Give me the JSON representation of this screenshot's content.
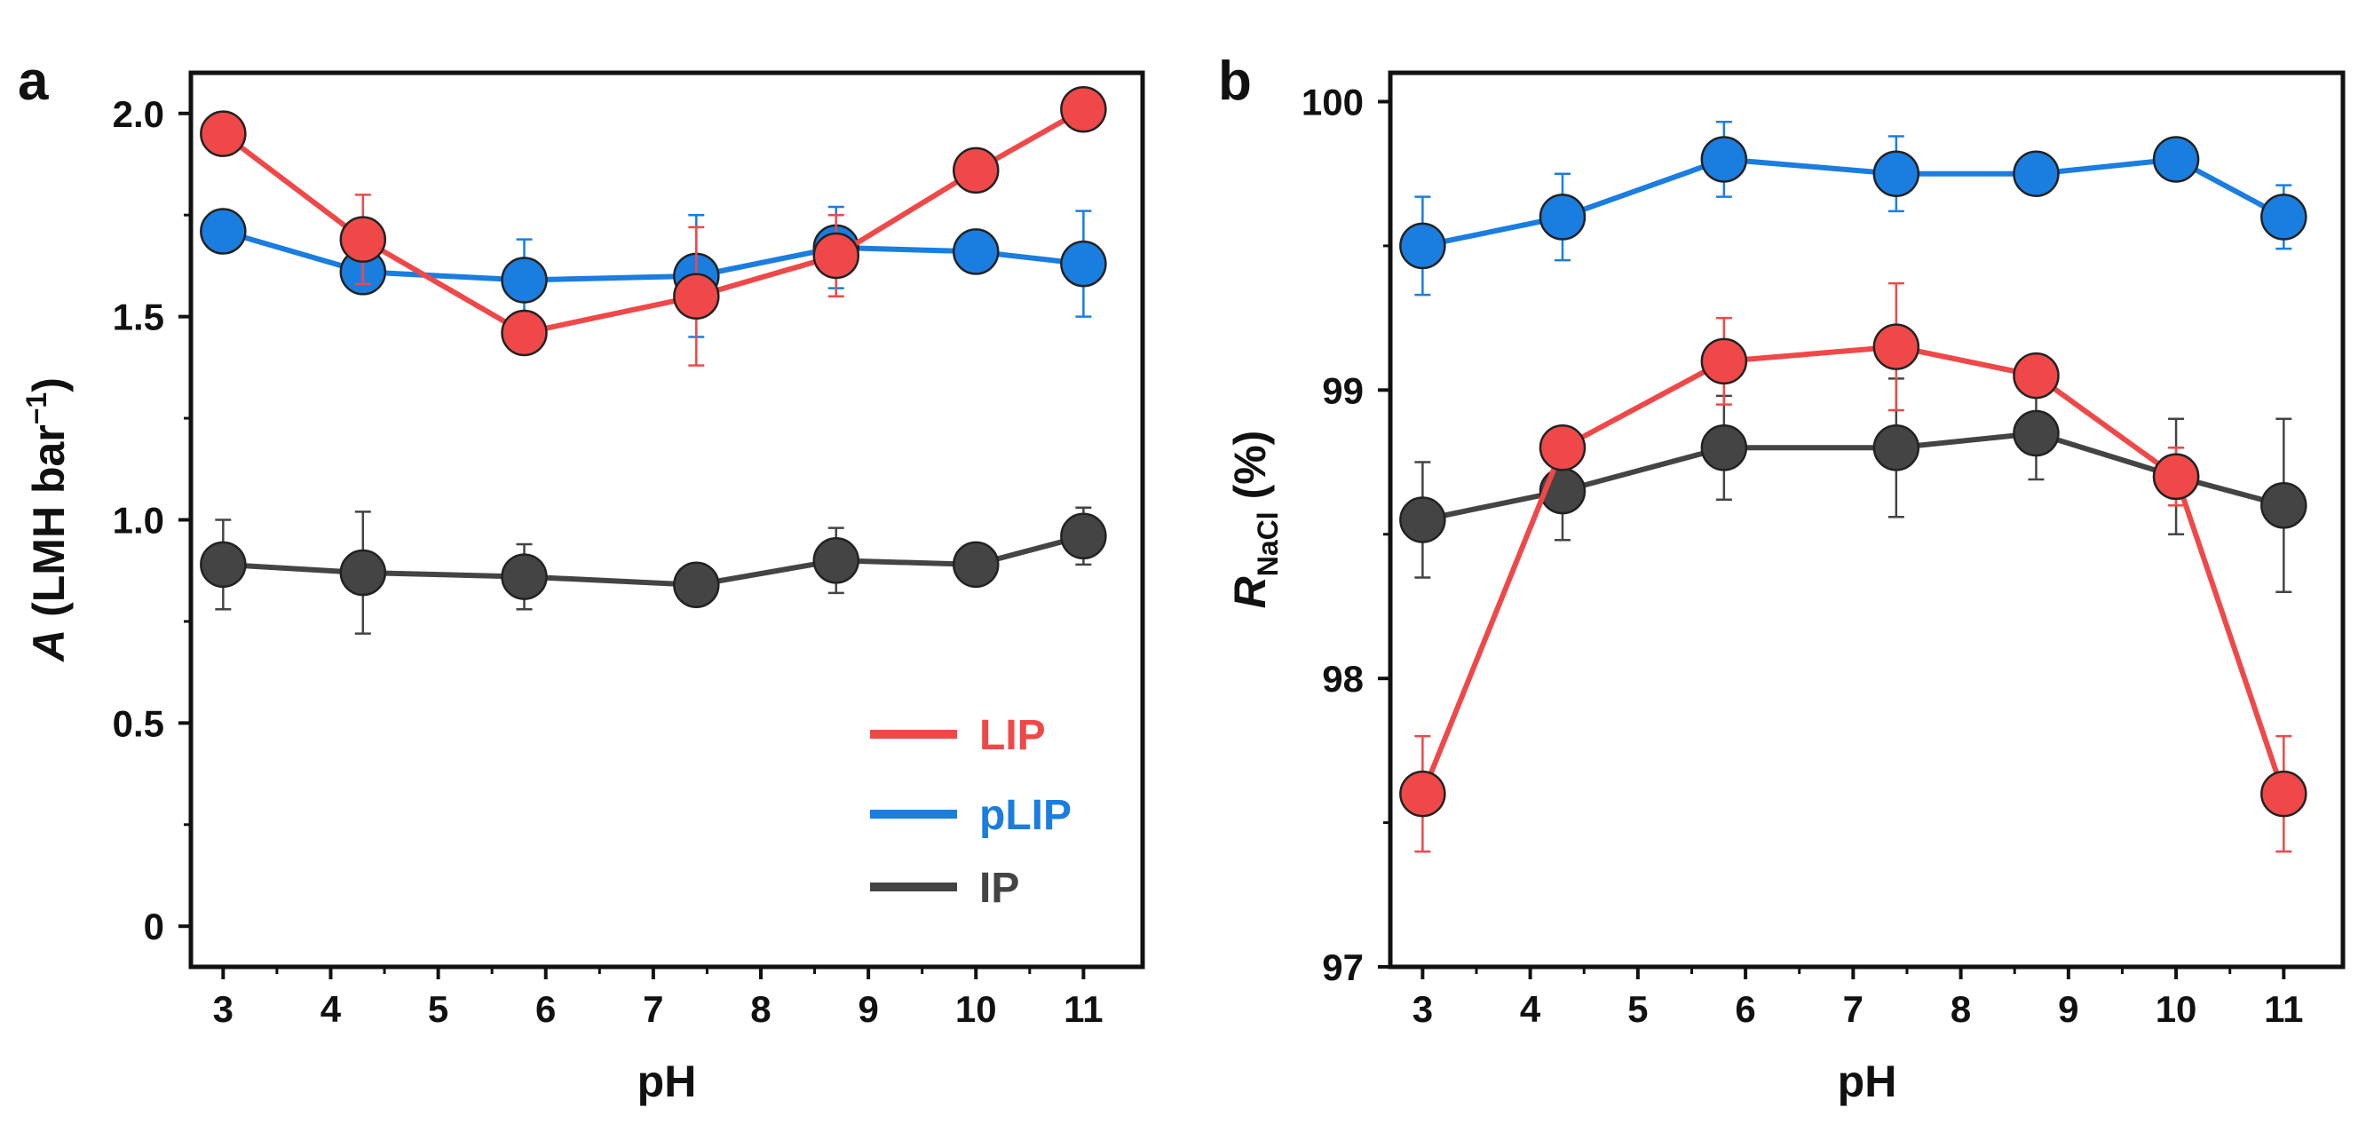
{
  "colors": {
    "LIP": "#f04848",
    "pLIP": "#1a7de0",
    "IP": "#444444"
  },
  "chart_data": [
    {
      "type": "line",
      "panel_label": "a",
      "xlabel": "pH",
      "ylabel_main": "A",
      "ylabel_rest": " (LMH bar",
      "ylabel_sup": "−1",
      "ylabel_close": ")",
      "xlim": [
        2.7,
        11.55
      ],
      "ylim": [
        -0.1,
        2.1
      ],
      "xticks": [
        3,
        4,
        5,
        6,
        7,
        8,
        9,
        10,
        11
      ],
      "yticks": [
        0,
        0.5,
        1.0,
        1.5,
        2.0
      ],
      "ytick_labels": [
        "0",
        "0.5",
        "1.0",
        "1.5",
        "2.0"
      ],
      "legend": "lower-right",
      "series": [
        {
          "name": "LIP",
          "x": [
            3,
            4.3,
            5.8,
            7.4,
            8.7,
            10,
            11
          ],
          "y": [
            1.95,
            1.69,
            1.46,
            1.55,
            1.65,
            1.86,
            2.01
          ],
          "err": [
            0,
            0.11,
            0,
            0.17,
            0.1,
            0,
            0
          ]
        },
        {
          "name": "pLIP",
          "x": [
            3,
            4.3,
            5.8,
            7.4,
            8.7,
            10,
            11
          ],
          "y": [
            1.71,
            1.61,
            1.59,
            1.6,
            1.67,
            1.66,
            1.63
          ],
          "err": [
            0,
            0,
            0.1,
            0.15,
            0.1,
            0,
            0.13
          ]
        },
        {
          "name": "IP",
          "x": [
            3,
            4.3,
            5.8,
            7.4,
            8.7,
            10,
            11
          ],
          "y": [
            0.89,
            0.87,
            0.86,
            0.84,
            0.9,
            0.89,
            0.96
          ],
          "err": [
            0.11,
            0.15,
            0.08,
            0,
            0.08,
            0,
            0.07
          ]
        }
      ]
    },
    {
      "type": "line",
      "panel_label": "b",
      "xlabel": "pH",
      "ylabel_main": "R",
      "ylabel_sub": "NaCl",
      "ylabel_rest": " (%)",
      "xlim": [
        2.7,
        11.55
      ],
      "ylim": [
        97,
        100.1
      ],
      "xticks": [
        3,
        4,
        5,
        6,
        7,
        8,
        9,
        10,
        11
      ],
      "yticks": [
        97,
        98,
        99,
        100
      ],
      "ytick_labels": [
        "97",
        "98",
        "99",
        "100"
      ],
      "series": [
        {
          "name": "LIP",
          "x": [
            3,
            4.3,
            5.8,
            7.4,
            8.7,
            10,
            11
          ],
          "y": [
            97.6,
            98.8,
            99.1,
            99.15,
            99.05,
            98.7,
            97.6
          ],
          "err": [
            0.2,
            0,
            0.15,
            0.22,
            0,
            0.1,
            0.2
          ]
        },
        {
          "name": "pLIP",
          "x": [
            3,
            4.3,
            5.8,
            7.4,
            8.7,
            10,
            11
          ],
          "y": [
            99.5,
            99.6,
            99.8,
            99.75,
            99.75,
            99.8,
            99.6
          ],
          "err": [
            0.17,
            0.15,
            0.13,
            0.13,
            0,
            0,
            0.11
          ]
        },
        {
          "name": "IP",
          "x": [
            3,
            4.3,
            5.8,
            7.4,
            8.7,
            10,
            11
          ],
          "y": [
            98.55,
            98.65,
            98.8,
            98.8,
            98.85,
            98.7,
            98.6
          ],
          "err": [
            0.2,
            0.17,
            0.18,
            0.24,
            0.16,
            0.2,
            0.3
          ]
        }
      ]
    }
  ]
}
